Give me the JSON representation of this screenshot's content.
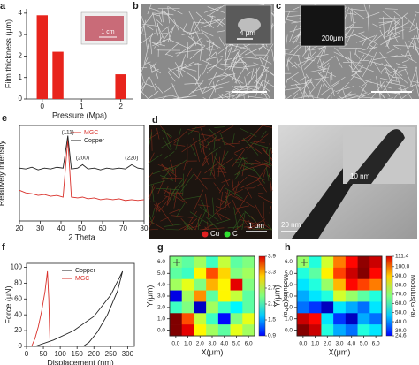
{
  "chart_data": [
    {
      "type": "bar",
      "label": "a",
      "x_label": "Pressure (Mpa)",
      "y_label": "Film thickness (μm)",
      "inset_scale": "1 cm",
      "x": [
        0,
        0.4,
        2
      ],
      "values": [
        3.9,
        2.2,
        1.15
      ],
      "color": "#e8241c",
      "xlim": [
        -0.4,
        2.3
      ],
      "xticks": [
        0,
        1,
        2
      ],
      "ylim": [
        0,
        4.2
      ],
      "yticks": [
        0,
        1,
        2,
        3,
        4
      ]
    },
    {
      "type": "line",
      "label": "e",
      "x_label": "2 Theta",
      "y_label": "Relatively intensity",
      "x": [
        20,
        23,
        26,
        29,
        32,
        35,
        38,
        41,
        43.3,
        45,
        48,
        50.4,
        53,
        56,
        59,
        62,
        65,
        68,
        71,
        74,
        77,
        80
      ],
      "series": [
        {
          "name": "MGC",
          "color": "#d9302a",
          "values": [
            36,
            33,
            32,
            30,
            31,
            29,
            30,
            28,
            96,
            28,
            27,
            28,
            26,
            27,
            25,
            26,
            25,
            26,
            24,
            25,
            24,
            25
          ]
        },
        {
          "name": "Copper",
          "color": "#222222",
          "values": [
            62,
            61,
            63,
            60,
            62,
            61,
            63,
            62,
            100,
            61,
            62,
            66,
            61,
            62,
            60,
            62,
            61,
            62,
            61,
            66,
            62,
            61
          ]
        }
      ],
      "annotations": [
        {
          "text": "(111)",
          "x": 43.3,
          "y": 104
        },
        {
          "text": "(200)",
          "x": 50.4,
          "y": 74
        },
        {
          "text": "(220)",
          "x": 74,
          "y": 74
        }
      ],
      "xlim": [
        20,
        80
      ],
      "xticks": [
        20,
        30,
        40,
        50,
        60,
        70,
        80
      ],
      "ylim": [
        0,
        112
      ]
    },
    {
      "type": "line",
      "label": "f",
      "x_label": "Displacement (nm)",
      "y_label": "Force (μN)",
      "series": [
        {
          "name": "Copper",
          "color": "#222222",
          "x": [
            25,
            80,
            140,
            200,
            250,
            285,
            270,
            240,
            210,
            185,
            168
          ],
          "values": [
            0,
            8,
            20,
            38,
            65,
            95,
            70,
            40,
            18,
            5,
            0
          ]
        },
        {
          "name": "MGC",
          "color": "#d9302a",
          "x": [
            15,
            25,
            35,
            45,
            55,
            62,
            66,
            68,
            70
          ],
          "values": [
            0,
            10,
            25,
            45,
            70,
            95,
            60,
            25,
            0
          ]
        }
      ],
      "xlim": [
        0,
        320
      ],
      "xticks": [
        0,
        50,
        100,
        150,
        200,
        250,
        300
      ],
      "ylim": [
        0,
        105
      ],
      "yticks": [
        0,
        20,
        40,
        60,
        80,
        100
      ]
    },
    {
      "type": "heatmap",
      "label": "g",
      "x_label": "X(μm)",
      "y_label": "Y(μm)",
      "c_label": "Modulus(GPa)",
      "x": [
        0,
        1,
        2,
        3,
        4,
        5,
        6
      ],
      "y": [
        6,
        5,
        4,
        3,
        2,
        1,
        0
      ],
      "z": [
        [
          2.4,
          2.3,
          2.5,
          2.2,
          2.6,
          2.3,
          2.4
        ],
        [
          2.3,
          2.2,
          2.8,
          3.3,
          2.9,
          2.4,
          2.5
        ],
        [
          2.5,
          2.7,
          2.4,
          3.0,
          2.8,
          3.6,
          2.4
        ],
        [
          1.2,
          2.5,
          3.1,
          2.3,
          2.8,
          2.6,
          2.3
        ],
        [
          2.2,
          2.4,
          1.1,
          2.5,
          2.2,
          2.0,
          2.3
        ],
        [
          3.9,
          3.3,
          2.6,
          2.2,
          1.3,
          2.4,
          2.7
        ],
        [
          3.9,
          3.6,
          2.8,
          2.5,
          2.3,
          2.7,
          2.5
        ]
      ],
      "xlim": [
        -0.5,
        6.5
      ],
      "ylim": [
        -0.5,
        6.5
      ],
      "xticks": [
        {
          "value": 0,
          "label": "0.0"
        },
        {
          "value": 1,
          "label": "1.0"
        },
        {
          "value": 2,
          "label": "2.0"
        },
        {
          "value": 3,
          "label": "3.0"
        },
        {
          "value": 4,
          "label": "4.0"
        },
        {
          "value": 5,
          "label": "5.0"
        },
        {
          "value": 6,
          "label": "6.0"
        }
      ],
      "yticks": [
        {
          "value": 0,
          "label": "0.0"
        },
        {
          "value": 1,
          "label": "1.0"
        },
        {
          "value": 2,
          "label": "2.0"
        },
        {
          "value": 3,
          "label": "3.0"
        },
        {
          "value": 4,
          "label": "4.0"
        },
        {
          "value": 5,
          "label": "5.0"
        },
        {
          "value": 6,
          "label": "6.0"
        }
      ],
      "clim": [
        0.9,
        3.9
      ],
      "cticks": [
        0.9,
        1.5,
        2.1,
        2.7,
        3.3,
        3.9
      ]
    },
    {
      "type": "heatmap",
      "label": "h",
      "x_label": "X(μm)",
      "y_label": "Y(μm)",
      "c_label": "Modulus(GPa)",
      "x": [
        0,
        1,
        2,
        3,
        4,
        5,
        6
      ],
      "y": [
        6,
        5,
        4,
        3,
        2,
        1,
        0
      ],
      "z": [
        [
          70,
          60,
          75,
          90,
          100,
          110,
          105
        ],
        [
          60,
          65,
          80,
          95,
          105,
          111,
          100
        ],
        [
          55,
          60,
          70,
          85,
          100,
          95,
          90
        ],
        [
          50,
          55,
          60,
          75,
          70,
          65,
          60
        ],
        [
          45,
          40,
          30,
          55,
          50,
          45,
          55
        ],
        [
          105,
          100,
          55,
          40,
          30,
          50,
          45
        ],
        [
          111,
          105,
          60,
          50,
          45,
          60,
          55
        ]
      ],
      "xlim": [
        -0.5,
        6.5
      ],
      "ylim": [
        -0.5,
        6.5
      ],
      "xticks": [
        {
          "value": 0,
          "label": "0.0"
        },
        {
          "value": 1,
          "label": "1.0"
        },
        {
          "value": 2,
          "label": "2.0"
        },
        {
          "value": 3,
          "label": "3.0"
        },
        {
          "value": 4,
          "label": "4.0"
        },
        {
          "value": 5,
          "label": "5.0"
        },
        {
          "value": 6,
          "label": "6.0"
        }
      ],
      "yticks": [
        {
          "value": 0,
          "label": "0.0"
        },
        {
          "value": 1,
          "label": "1.0"
        },
        {
          "value": 2,
          "label": "2.0"
        },
        {
          "value": 3,
          "label": "3.0"
        },
        {
          "value": 4,
          "label": "4.0"
        },
        {
          "value": 5,
          "label": "5.0"
        },
        {
          "value": 6,
          "label": "6.0"
        }
      ],
      "clim": [
        24.6,
        111.4
      ],
      "cticks": [
        24.6,
        {
          "value": 30,
          "label": "30.0"
        },
        {
          "value": 40,
          "label": "40.0"
        },
        {
          "value": 50,
          "label": "50.0"
        },
        {
          "value": 60,
          "label": "60.0"
        },
        {
          "value": 70,
          "label": "70.0"
        },
        {
          "value": 80,
          "label": "80.0"
        },
        {
          "value": 90,
          "label": "90.0"
        },
        {
          "value": 100,
          "label": "100.0"
        },
        111.4
      ]
    }
  ],
  "images": {
    "b": {
      "label": "b",
      "inset_scale": "4 μm"
    },
    "c": {
      "label": "c",
      "inset_scale": "200μm"
    },
    "d": {
      "label": "d",
      "legend": [
        "Cu",
        "C"
      ],
      "scale": "1 μm",
      "tem_inset_scale": "10 nm",
      "tem_scale": "20 nm"
    }
  }
}
